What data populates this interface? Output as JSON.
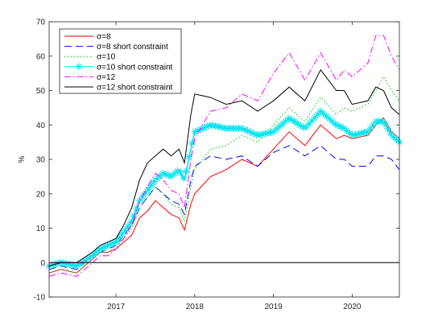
{
  "chart_data": {
    "type": "line",
    "title": "",
    "xlabel": "",
    "ylabel": "%",
    "xlim": [
      2016.15,
      2020.6
    ],
    "ylim": [
      -10,
      70
    ],
    "xticks": [
      2017,
      2018,
      2019,
      2020
    ],
    "xtick_labels": [
      "2017",
      "2018",
      "2019",
      "2020"
    ],
    "yticks": [
      -10,
      0,
      10,
      20,
      30,
      40,
      50,
      60,
      70
    ],
    "ytick_labels": [
      "-10",
      "0",
      "10",
      "20",
      "30",
      "40",
      "50",
      "60",
      "70"
    ],
    "reference_line_y": 0,
    "grid": false,
    "legend_position": "top-left",
    "series": [
      {
        "name": "σ=8",
        "color": "#ff0000",
        "style": "solid",
        "x": [
          2016.15,
          2016.3,
          2016.5,
          2016.7,
          2016.8,
          2016.9,
          2017.0,
          2017.1,
          2017.2,
          2017.3,
          2017.4,
          2017.5,
          2017.6,
          2017.7,
          2017.8,
          2017.87,
          2017.95,
          2018.0,
          2018.2,
          2018.4,
          2018.6,
          2018.8,
          2019.0,
          2019.2,
          2019.4,
          2019.6,
          2019.8,
          2019.9,
          2020.0,
          2020.2,
          2020.3,
          2020.4,
          2020.5,
          2020.6
        ],
        "values": [
          -3,
          -2,
          -3,
          1,
          3,
          3,
          4,
          6,
          8,
          13,
          15,
          18,
          16,
          14,
          13,
          9.5,
          17,
          20,
          25,
          27,
          30,
          28,
          33,
          38,
          34,
          40,
          36,
          37,
          36,
          37,
          40,
          42,
          38,
          36
        ]
      },
      {
        "name": "σ=8 short constraint",
        "color": "#0000ff",
        "style": "dashed",
        "x": [
          2016.15,
          2016.3,
          2016.5,
          2016.7,
          2016.8,
          2016.9,
          2017.0,
          2017.1,
          2017.2,
          2017.3,
          2017.4,
          2017.5,
          2017.6,
          2017.7,
          2017.8,
          2017.87,
          2017.95,
          2018.0,
          2018.2,
          2018.4,
          2018.6,
          2018.8,
          2019.0,
          2019.2,
          2019.4,
          2019.6,
          2019.8,
          2019.9,
          2020.0,
          2020.2,
          2020.3,
          2020.4,
          2020.5,
          2020.6
        ],
        "values": [
          -2,
          -1,
          -2,
          2,
          3,
          4,
          5,
          8,
          11,
          16,
          19,
          22,
          20,
          18,
          17,
          14,
          24,
          28,
          31,
          30,
          31,
          28,
          32,
          34,
          31,
          34,
          30,
          30,
          28,
          28,
          31,
          31,
          30,
          27
        ]
      },
      {
        "name": "σ=10",
        "color": "#00cc00",
        "style": "dotted",
        "x": [
          2016.15,
          2016.3,
          2016.5,
          2016.7,
          2016.8,
          2016.9,
          2017.0,
          2017.1,
          2017.2,
          2017.3,
          2017.4,
          2017.5,
          2017.6,
          2017.7,
          2017.8,
          2017.87,
          2017.95,
          2018.0,
          2018.2,
          2018.4,
          2018.6,
          2018.8,
          2019.0,
          2019.2,
          2019.4,
          2019.6,
          2019.8,
          2019.9,
          2020.0,
          2020.2,
          2020.3,
          2020.4,
          2020.5,
          2020.6
        ],
        "values": [
          -3,
          -2,
          -3,
          1,
          3,
          3,
          5,
          7,
          10,
          16,
          19,
          22,
          20,
          17,
          16,
          12,
          22,
          27,
          33,
          34,
          37,
          35,
          40,
          45,
          41,
          48,
          43,
          45,
          44,
          46,
          50,
          54,
          50,
          47
        ]
      },
      {
        "name": "σ=10 short constraint",
        "color": "#00e5ee",
        "style": "solid-star",
        "x": [
          2016.15,
          2016.3,
          2016.5,
          2016.7,
          2016.8,
          2016.9,
          2017.0,
          2017.1,
          2017.2,
          2017.3,
          2017.4,
          2017.5,
          2017.6,
          2017.7,
          2017.8,
          2017.87,
          2017.95,
          2018.0,
          2018.2,
          2018.4,
          2018.6,
          2018.8,
          2019.0,
          2019.2,
          2019.4,
          2019.6,
          2019.8,
          2019.9,
          2020.0,
          2020.2,
          2020.3,
          2020.4,
          2020.5,
          2020.6
        ],
        "values": [
          -1,
          0,
          -1,
          2,
          4,
          5,
          6,
          9,
          12,
          18,
          21,
          24,
          26,
          25,
          27,
          24,
          33,
          38,
          40,
          39,
          39,
          37,
          38,
          42,
          39,
          44,
          40,
          39,
          37,
          38,
          41,
          41,
          37,
          35
        ]
      },
      {
        "name": "σ=12",
        "color": "#ff00ff",
        "style": "dashdot",
        "x": [
          2016.15,
          2016.3,
          2016.5,
          2016.7,
          2016.8,
          2016.9,
          2017.0,
          2017.1,
          2017.2,
          2017.3,
          2017.4,
          2017.5,
          2017.6,
          2017.7,
          2017.8,
          2017.87,
          2017.95,
          2018.0,
          2018.2,
          2018.4,
          2018.6,
          2018.8,
          2019.0,
          2019.2,
          2019.4,
          2019.6,
          2019.8,
          2019.9,
          2020.0,
          2020.2,
          2020.3,
          2020.4,
          2020.5,
          2020.6
        ],
        "values": [
          -4,
          -3,
          -4,
          0,
          2,
          2,
          4,
          7,
          11,
          18,
          22,
          26,
          24,
          21,
          20,
          16,
          30,
          36,
          44,
          45,
          49,
          47,
          55,
          61,
          53,
          61,
          53,
          56,
          54,
          58,
          66,
          66,
          60,
          56
        ]
      },
      {
        "name": "σ=12 short constraint",
        "color": "#000000",
        "style": "solid",
        "x": [
          2016.15,
          2016.3,
          2016.5,
          2016.7,
          2016.8,
          2016.9,
          2017.0,
          2017.1,
          2017.2,
          2017.3,
          2017.4,
          2017.5,
          2017.6,
          2017.7,
          2017.8,
          2017.87,
          2017.95,
          2018.0,
          2018.2,
          2018.4,
          2018.6,
          2018.8,
          2019.0,
          2019.2,
          2019.4,
          2019.6,
          2019.8,
          2019.9,
          2020.0,
          2020.2,
          2020.3,
          2020.4,
          2020.5,
          2020.6
        ],
        "values": [
          -1,
          0,
          0,
          3,
          5,
          6,
          7,
          11,
          16,
          24,
          29,
          31,
          33,
          31,
          33,
          29,
          43,
          49,
          48,
          46,
          47,
          44,
          47,
          51,
          47,
          56,
          50,
          50,
          46,
          47,
          51,
          50,
          45,
          43
        ]
      }
    ]
  }
}
